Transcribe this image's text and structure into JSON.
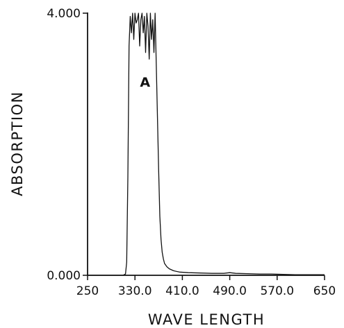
{
  "chart_data": {
    "type": "line",
    "title": "",
    "xlabel": "WAVE LENGTH",
    "ylabel": "ABSORPTION",
    "xlim": [
      250,
      650
    ],
    "ylim": [
      0,
      4
    ],
    "x_ticks": [
      250,
      330,
      410,
      490,
      570,
      650
    ],
    "x_tick_labels": [
      "250",
      "330.0",
      "410.0",
      "490.0",
      "570.0",
      "650"
    ],
    "y_ticks": [
      0,
      4
    ],
    "y_tick_labels": [
      "0.000",
      "4.000"
    ],
    "grid": false,
    "annotations": [
      {
        "text": "A",
        "x": 347,
        "y": 2.88
      }
    ],
    "series": [
      {
        "x": [
          250,
          300,
          310,
          314,
          316,
          318,
          320,
          322,
          324,
          326,
          328,
          330,
          332,
          334,
          336,
          338,
          340,
          342,
          344,
          346,
          348,
          350,
          352,
          354,
          356,
          358,
          360,
          362,
          364,
          366,
          368,
          370,
          372,
          374,
          376,
          378,
          380,
          384,
          388,
          395,
          405,
          420,
          440,
          460,
          480,
          490,
          500,
          520,
          540,
          560,
          580,
          600,
          620,
          640,
          650
        ],
        "y": [
          0,
          0,
          0,
          0.02,
          0.2,
          1.5,
          3.5,
          3.95,
          3.7,
          4.0,
          3.6,
          4.0,
          3.85,
          3.9,
          4.0,
          3.5,
          3.9,
          4.0,
          3.7,
          3.95,
          3.4,
          4.0,
          3.8,
          3.3,
          4.0,
          3.6,
          3.9,
          3.4,
          4.0,
          3.2,
          2.4,
          1.6,
          0.9,
          0.55,
          0.35,
          0.25,
          0.18,
          0.13,
          0.1,
          0.07,
          0.05,
          0.04,
          0.035,
          0.03,
          0.03,
          0.04,
          0.03,
          0.025,
          0.02,
          0.02,
          0.015,
          0.01,
          0.01,
          0.01,
          0.01
        ]
      }
    ]
  }
}
